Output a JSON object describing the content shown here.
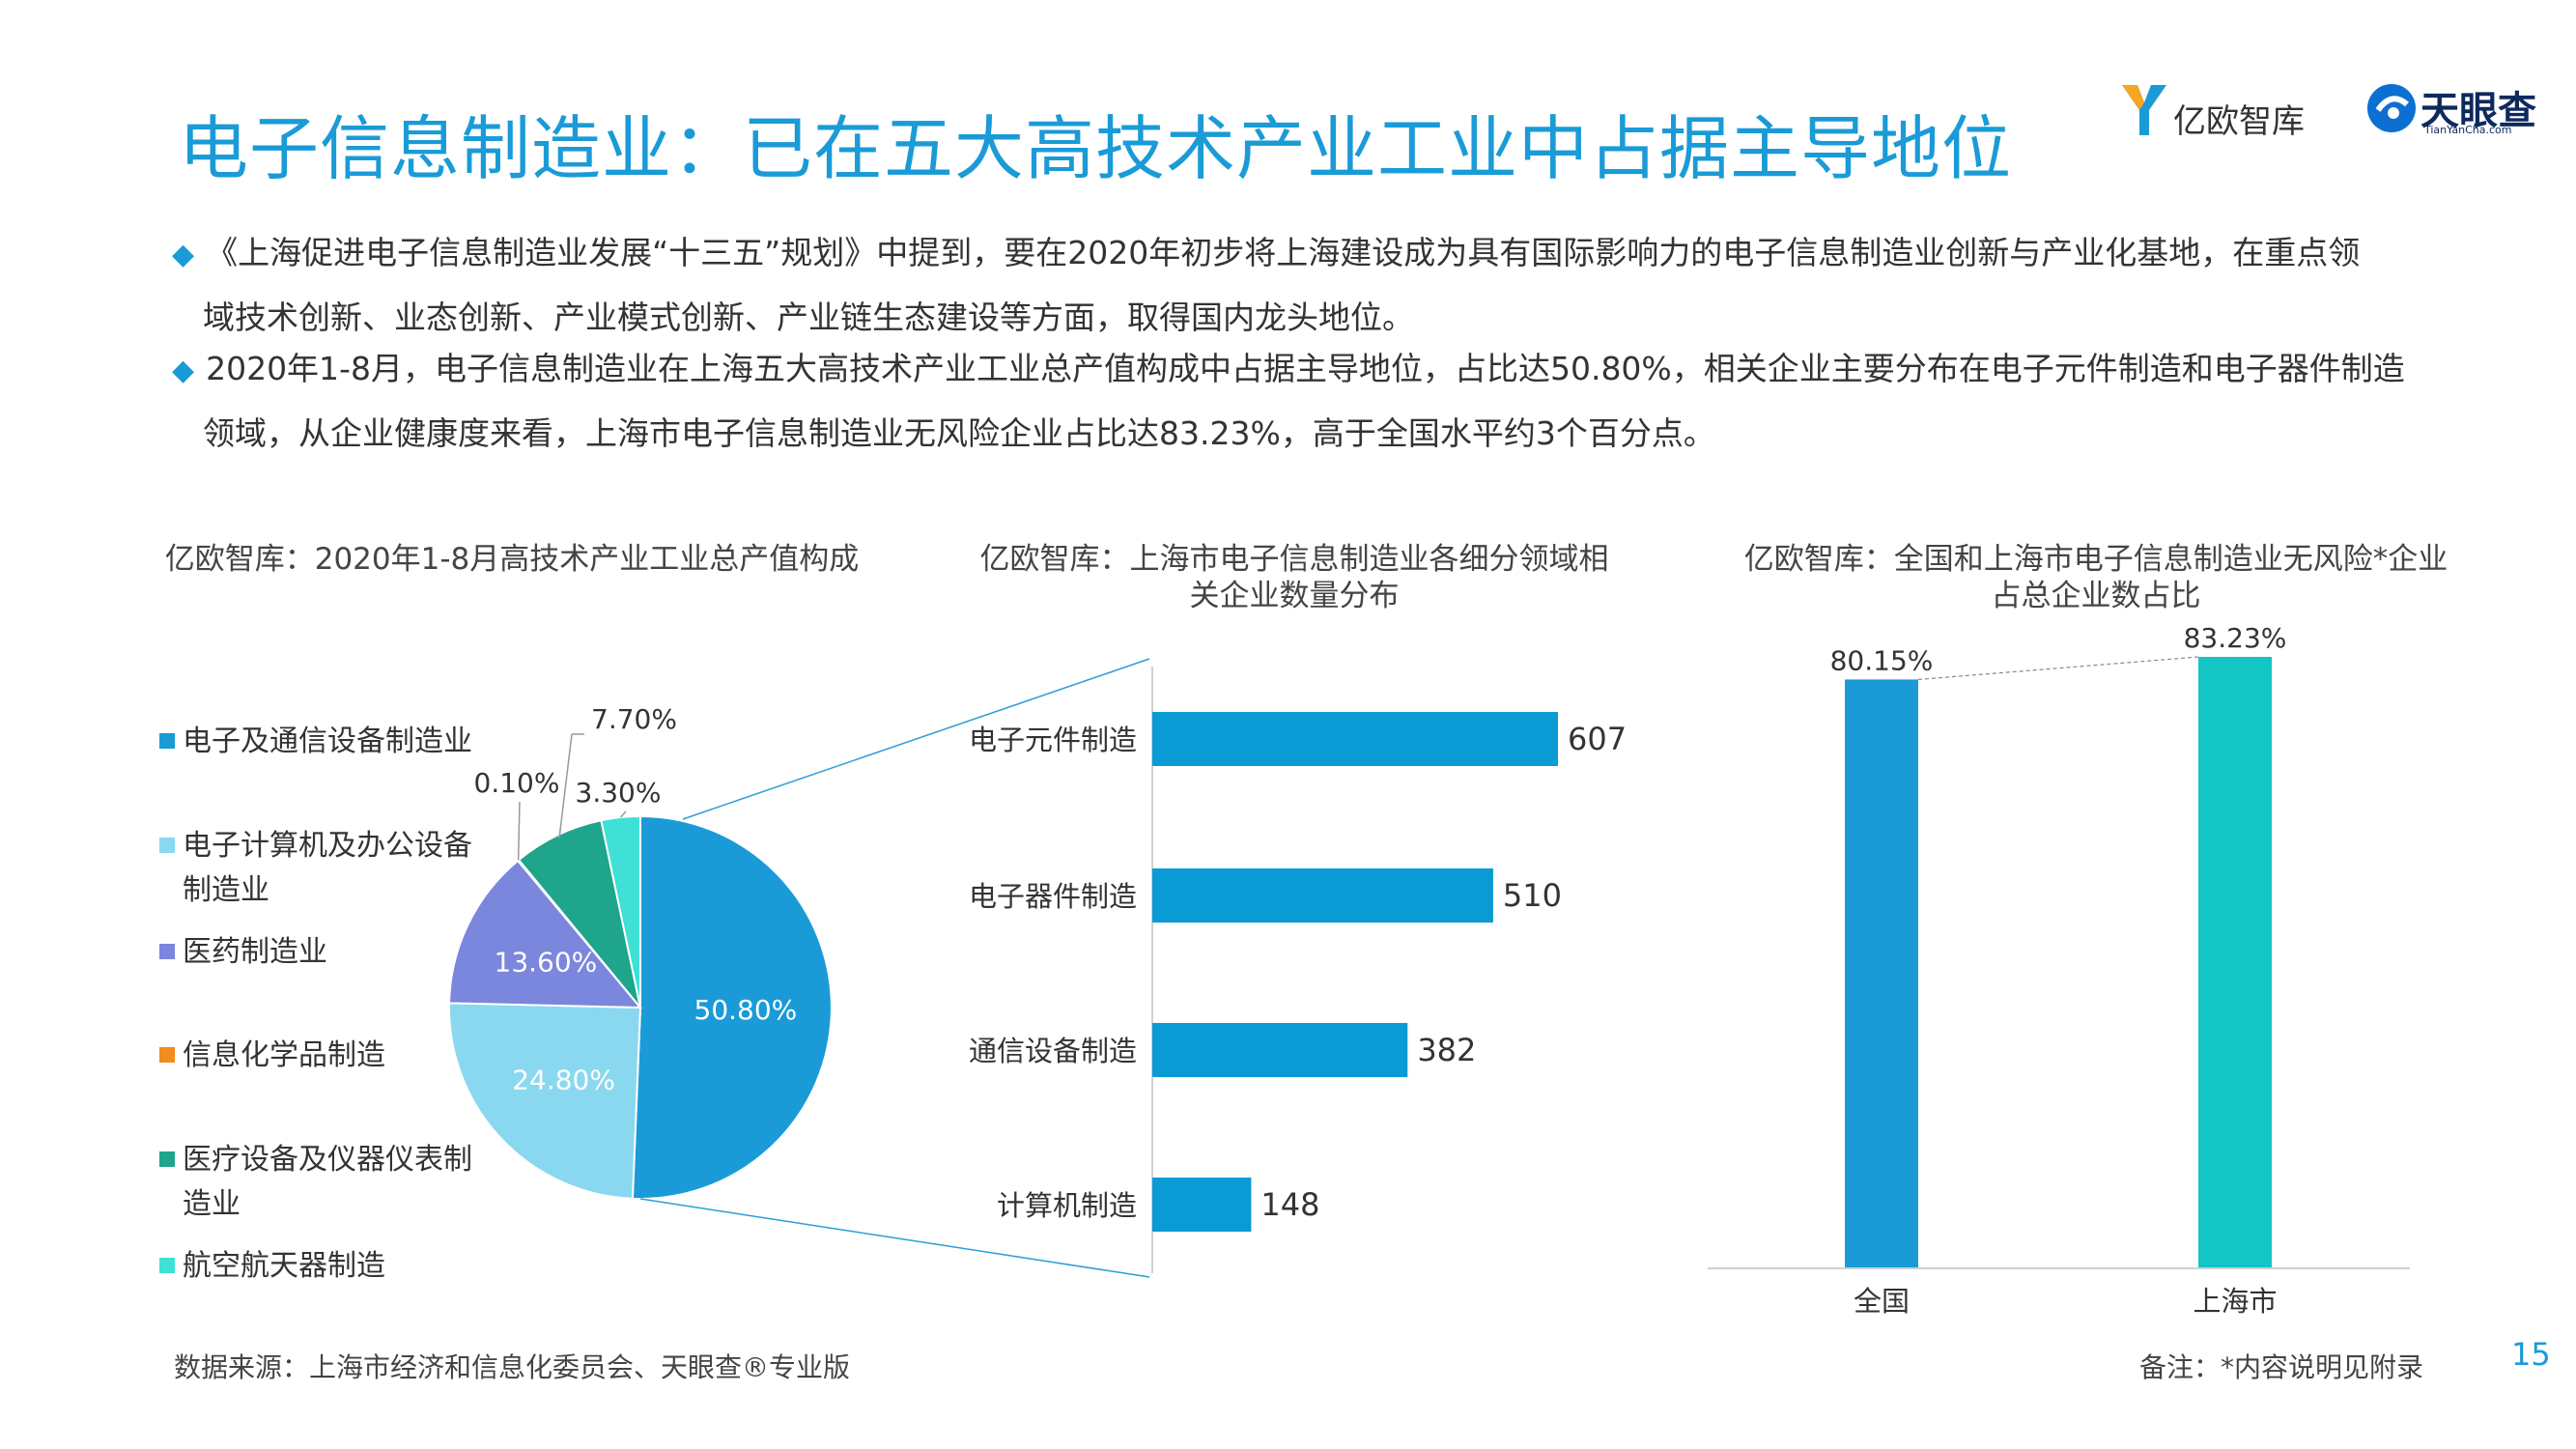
{
  "header": {
    "title": "电子信息制造业：已在五大高技术产业工业中占据主导地位",
    "logo1_text": "亿欧智库",
    "logo2_text": "天眼查",
    "logo2_sub": "TianYanCha.com"
  },
  "bullets": [
    {
      "line1": "《上海促进电子信息制造业发展“十三五”规划》中提到，要在2020年初步将上海建设成为具有国际影响力的电子信息制造业创新与产业化基地，在重点领",
      "line2": "域技术创新、业态创新、产业模式创新、产业链生态建设等方面，取得国内龙头地位。"
    },
    {
      "line1": "2020年1-8月，电子信息制造业在上海五大高技术产业工业总产值构成中占据主导地位，占比达50.80%，相关企业主要分布在电子元件制造和电子器件制造",
      "line2": "领域，从企业健康度来看，上海市电子信息制造业无风险企业占比达83.23%，高于全国水平约3个百分点。"
    }
  ],
  "colors": {
    "accent": "#1a9bd7",
    "pie": [
      "#1a9bd7",
      "#8ad8f0",
      "#7b86dd",
      "#f28c1c",
      "#1ea58c",
      "#3fe0d6"
    ],
    "bar2": "#0a9bd5",
    "bar3": [
      "#1a9bd7",
      "#14c5c5"
    ]
  },
  "chart_data": [
    {
      "type": "pie",
      "title": "亿欧智库：2020年1-8月高技术产业工业总产值构成",
      "categories": [
        "电子及通信设备制造业",
        "电子计算机及办公设备制造业",
        "医药制造业",
        "信息化学品制造",
        "医疗设备及仪器仪表制造业",
        "航空航天器制造"
      ],
      "legend_lines": [
        [
          "电子及通信设备制造业"
        ],
        [
          "电子计算机及办公设备",
          "制造业"
        ],
        [
          "医药制造业"
        ],
        [
          "信息化学品制造"
        ],
        [
          "医疗设备及仪器仪表制",
          "造业"
        ],
        [
          "航空航天器制造"
        ]
      ],
      "values": [
        50.8,
        24.8,
        13.6,
        0.1,
        7.7,
        3.3
      ],
      "labels": [
        "50.80%",
        "24.80%",
        "13.60%",
        "0.10%",
        "7.70%",
        "3.30%"
      ],
      "legend": "left"
    },
    {
      "type": "bar",
      "orientation": "horizontal",
      "title_lines": [
        "亿欧智库：上海市电子信息制造业各细分领域相",
        "关企业数量分布"
      ],
      "categories": [
        "电子元件制造",
        "电子器件制造",
        "通信设备制造",
        "计算机制造"
      ],
      "values": [
        607,
        510,
        382,
        148
      ]
    },
    {
      "type": "bar",
      "title_lines": [
        "亿欧智库：全国和上海市电子信息制造业无风险*企业",
        "占总企业数占比"
      ],
      "categories": [
        "全国",
        "上海市"
      ],
      "values": [
        80.15,
        83.23
      ],
      "labels": [
        "80.15%",
        "83.23%"
      ]
    }
  ],
  "footer": {
    "source": "数据来源：上海市经济和信息化委员会、天眼查®专业版",
    "note": "备注：*内容说明见附录",
    "page": "15"
  }
}
